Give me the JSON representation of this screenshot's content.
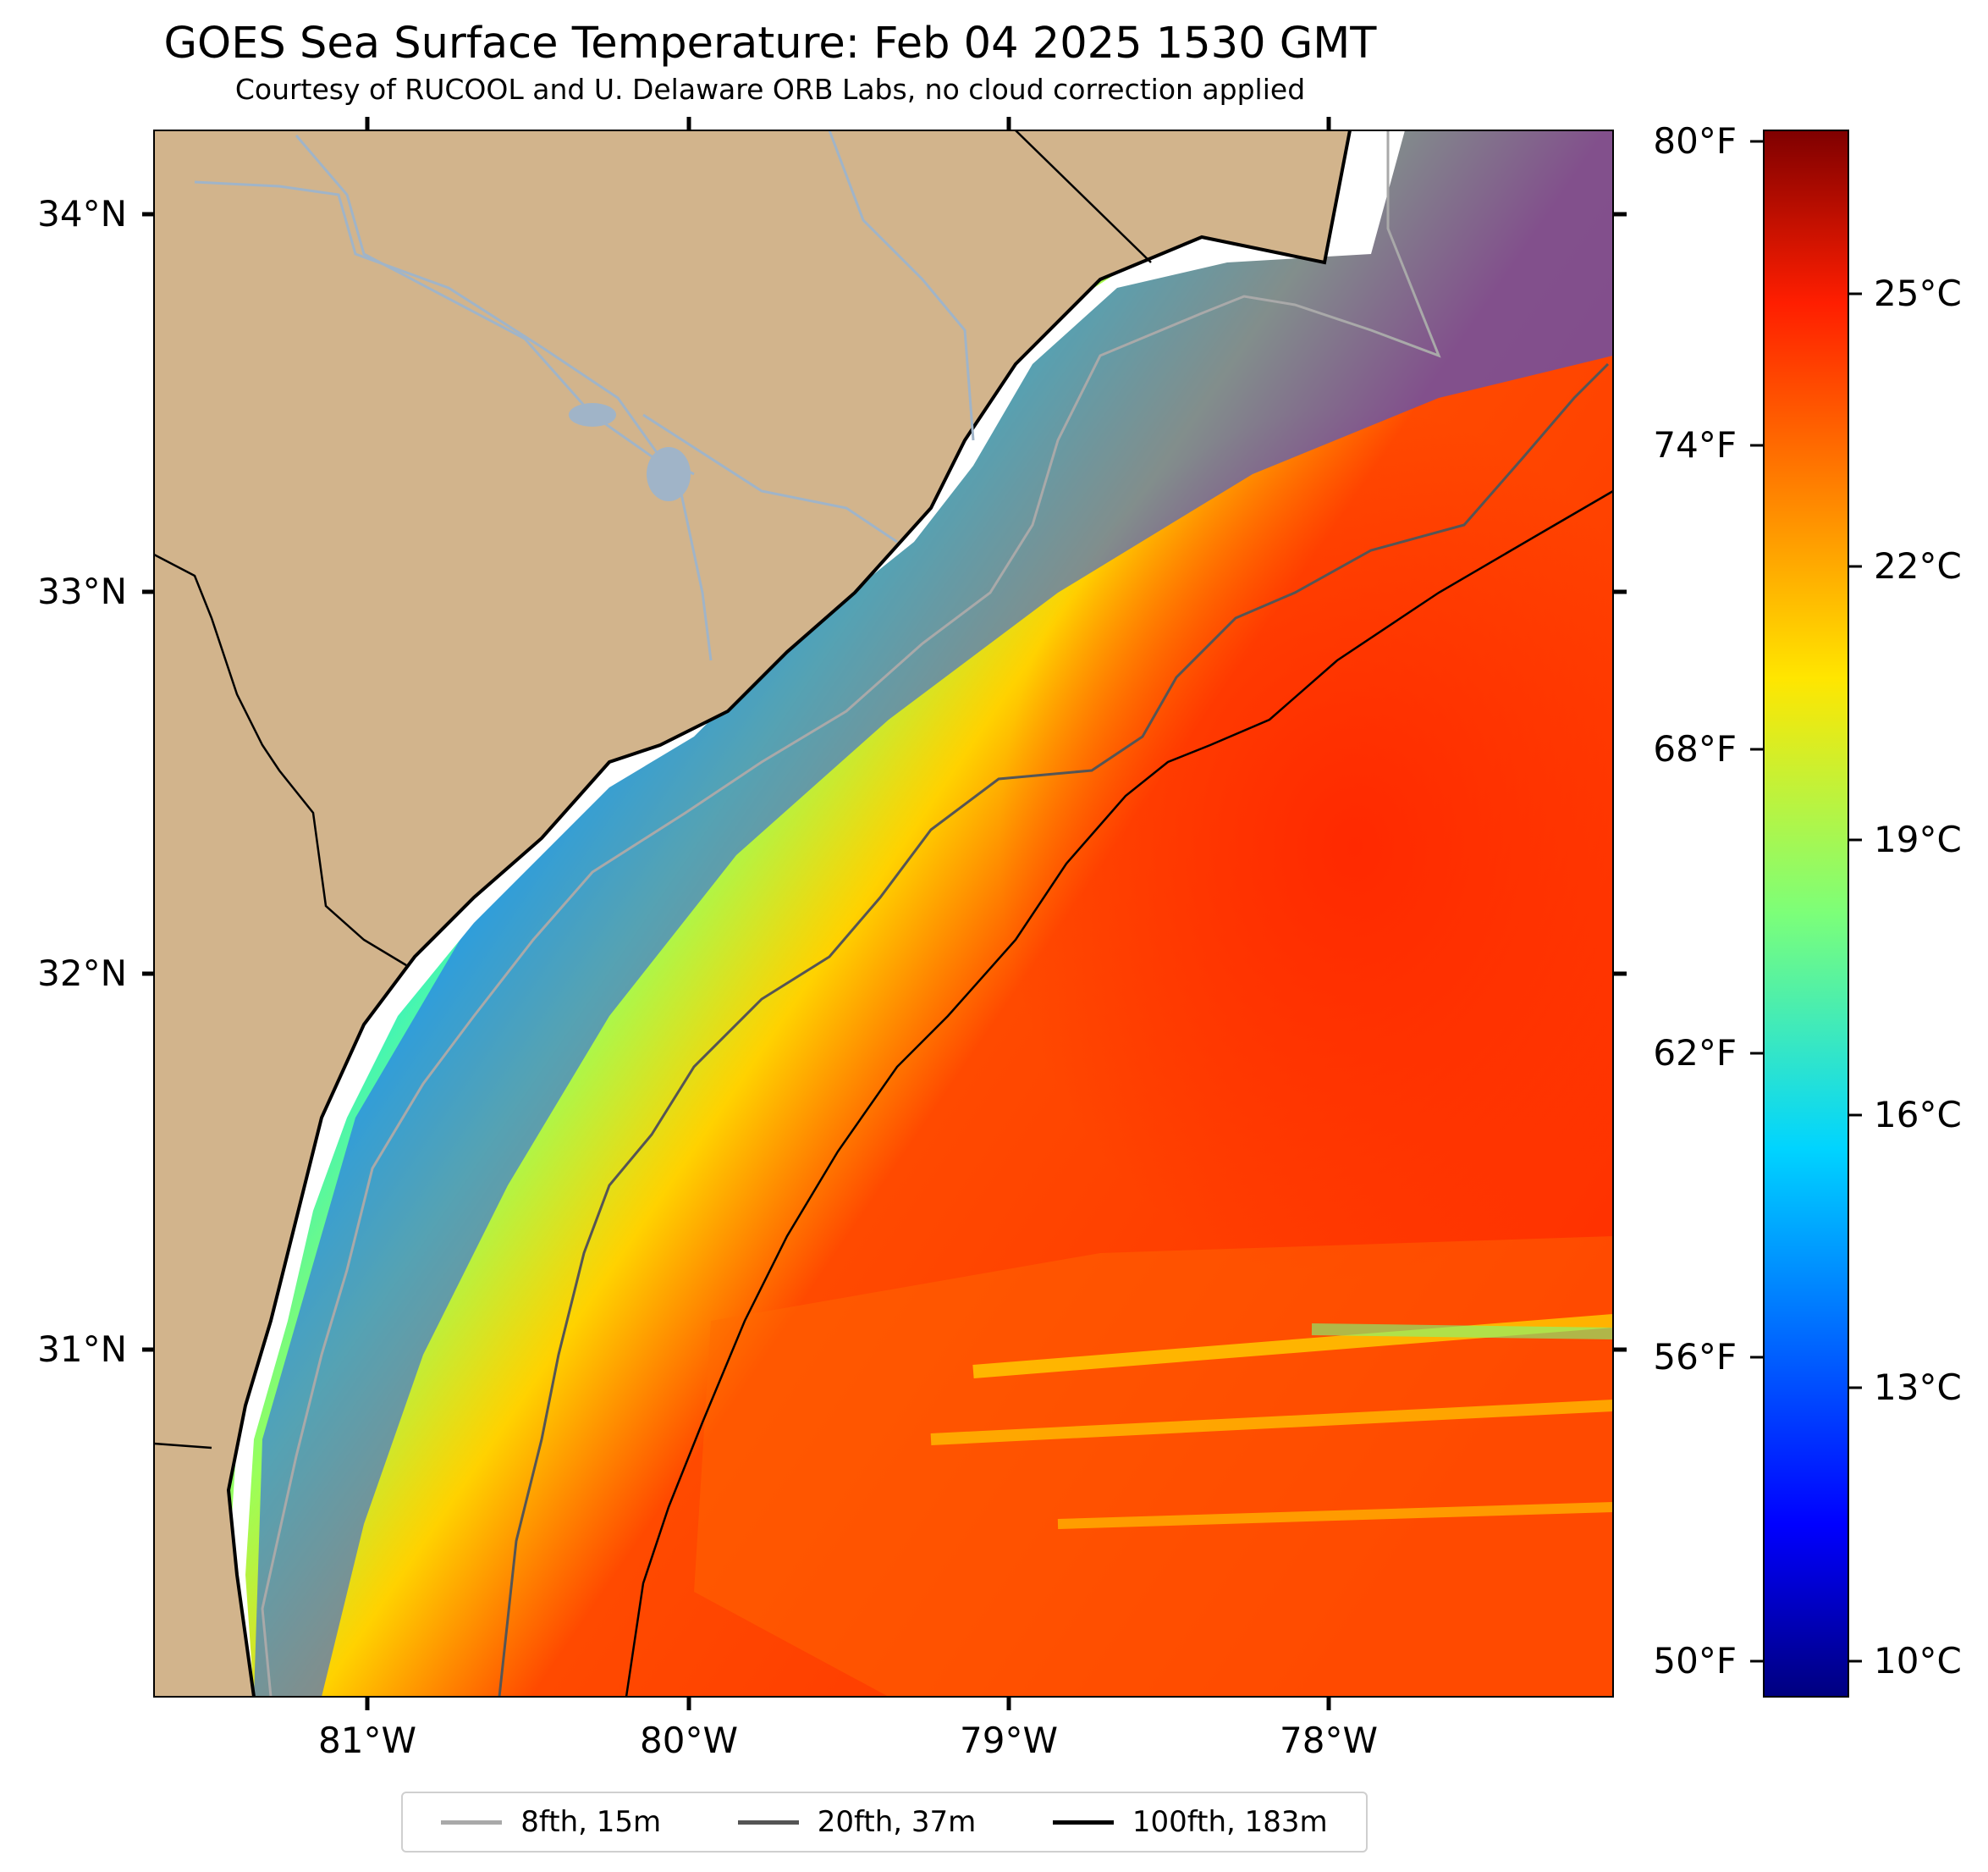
{
  "title": "GOES Sea Surface Temperature: Feb 04 2025 1530 GMT",
  "subtitle": "Courtesy of RUCOOL and U. Delaware ORB Labs, no cloud correction applied",
  "map": {
    "land_color": "#d2b48c",
    "coastline_color": "#000000",
    "river_color": "#a0b4c8",
    "latitude_labels": [
      "34°N",
      "33°N",
      "32°N",
      "31°N"
    ],
    "longitude_labels": [
      "81°W",
      "80°W",
      "79°W",
      "78°W"
    ]
  },
  "colorbar": {
    "fahrenheit_labels": [
      "80°F",
      "74°F",
      "68°F",
      "62°F",
      "56°F",
      "50°F"
    ],
    "celsius_labels": [
      "25°C",
      "22°C",
      "19°C",
      "16°C",
      "13°C",
      "10°C"
    ],
    "colormap": "jet",
    "range_c": [
      10,
      26.7
    ]
  },
  "legend": [
    {
      "label": "8fth, 15m",
      "color": "#a9a9a9"
    },
    {
      "label": "20fth, 37m",
      "color": "#555555"
    },
    {
      "label": "100fth, 183m",
      "color": "#000000"
    }
  ]
}
